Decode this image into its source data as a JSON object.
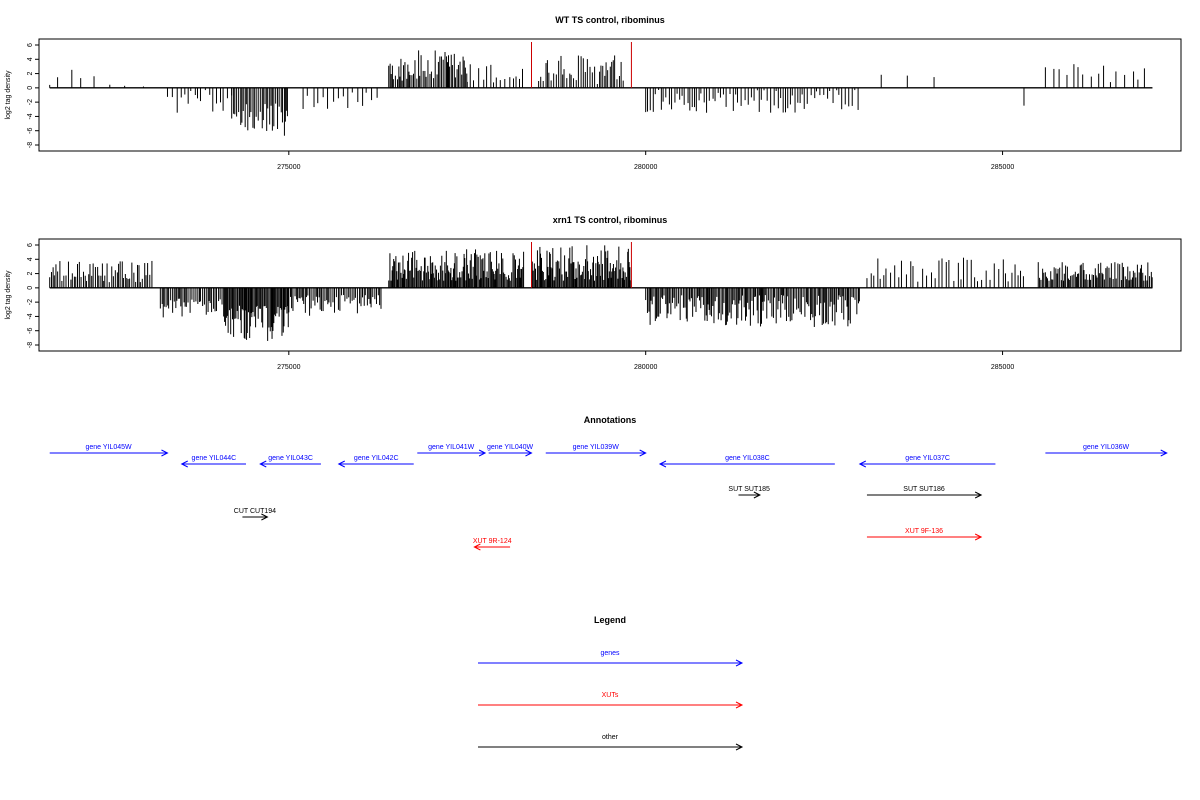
{
  "colors": {
    "genes": "#0000ff",
    "xuts": "#ff0000",
    "other": "#000000",
    "markers": "#cc0000"
  },
  "chart_data": [
    {
      "type": "bar",
      "title": "WT TS control, ribominus",
      "ylabel": "log2 tag density",
      "xlabel": "",
      "xlim": [
        271500,
        287500
      ],
      "ylim": [
        -8,
        6
      ],
      "xticks": [
        275000,
        280000,
        285000
      ],
      "yticks": [
        6,
        4,
        2,
        0,
        -2,
        -4,
        -6,
        -8
      ],
      "markers": [
        278400,
        279800
      ],
      "segments": [
        {
          "from": 271650,
          "to": 272600,
          "sign": 1,
          "min": 0.4,
          "max": 2.8,
          "step": 180
        },
        {
          "from": 272700,
          "to": 273200,
          "sign": 1,
          "min": 0.0,
          "max": 0.3,
          "step": 400
        },
        {
          "from": 273300,
          "to": 274200,
          "sign": -1,
          "min": 0.3,
          "max": 3.5,
          "step": 50
        },
        {
          "from": 274200,
          "to": 275000,
          "sign": -1,
          "min": 2.0,
          "max": 6.7,
          "step": 22
        },
        {
          "from": 275200,
          "to": 276300,
          "sign": -1,
          "min": 0.5,
          "max": 3.0,
          "step": 70
        },
        {
          "from": 276400,
          "to": 277500,
          "sign": 1,
          "min": 1.0,
          "max": 5.3,
          "step": 22
        },
        {
          "from": 277500,
          "to": 278300,
          "sign": 1,
          "min": 0.5,
          "max": 3.5,
          "step": 55
        },
        {
          "from": 278500,
          "to": 279700,
          "sign": 1,
          "min": 0.5,
          "max": 4.8,
          "step": 30
        },
        {
          "from": 280000,
          "to": 283000,
          "sign": -1,
          "min": 0.3,
          "max": 3.5,
          "step": 40
        },
        {
          "from": 283300,
          "to": 284200,
          "sign": 1,
          "min": 1.5,
          "max": 2.2,
          "step": 300
        },
        {
          "from": 285300,
          "to": 285400,
          "sign": -1,
          "min": 2.0,
          "max": 2.6,
          "step": 200
        },
        {
          "from": 285600,
          "to": 287100,
          "sign": 1,
          "min": 0.8,
          "max": 3.4,
          "step": 90
        }
      ]
    },
    {
      "type": "bar",
      "title": "xrn1 TS control, ribominus",
      "ylabel": "log2 tag density",
      "xlabel": "",
      "xlim": [
        271500,
        287500
      ],
      "ylim": [
        -8,
        6
      ],
      "xticks": [
        275000,
        280000,
        285000
      ],
      "yticks": [
        6,
        4,
        2,
        0,
        -2,
        -4,
        -6,
        -8
      ],
      "markers": [
        278400,
        279800
      ],
      "segments": [
        {
          "from": 271650,
          "to": 273100,
          "sign": 1,
          "min": 0.8,
          "max": 3.8,
          "step": 25
        },
        {
          "from": 273200,
          "to": 274100,
          "sign": -1,
          "min": 1.5,
          "max": 4.2,
          "step": 22
        },
        {
          "from": 274100,
          "to": 275000,
          "sign": -1,
          "min": 2.5,
          "max": 7.5,
          "step": 14
        },
        {
          "from": 275000,
          "to": 276300,
          "sign": -1,
          "min": 1.0,
          "max": 4.0,
          "step": 22
        },
        {
          "from": 276400,
          "to": 278300,
          "sign": 1,
          "min": 1.0,
          "max": 5.4,
          "step": 14
        },
        {
          "from": 278400,
          "to": 279800,
          "sign": 1,
          "min": 1.0,
          "max": 6.0,
          "step": 14
        },
        {
          "from": 280000,
          "to": 283000,
          "sign": -1,
          "min": 1.0,
          "max": 5.5,
          "step": 18
        },
        {
          "from": 283100,
          "to": 285300,
          "sign": 1,
          "min": 0.8,
          "max": 4.3,
          "step": 50
        },
        {
          "from": 285500,
          "to": 287100,
          "sign": 1,
          "min": 1.0,
          "max": 3.6,
          "step": 18
        }
      ]
    }
  ],
  "annotations": {
    "title": "Annotations",
    "xlim": [
      271500,
      287500
    ],
    "features": [
      {
        "label": "gene YIL045W",
        "type": "gene",
        "strand": "+",
        "start": 271650,
        "end": 273300,
        "row": 0
      },
      {
        "label": "gene YIL044C",
        "type": "gene",
        "strand": "-",
        "start": 273500,
        "end": 274400,
        "row": 1
      },
      {
        "label": "gene YIL043C",
        "type": "gene",
        "strand": "-",
        "start": 274600,
        "end": 275450,
        "row": 1
      },
      {
        "label": "gene YIL042C",
        "type": "gene",
        "strand": "-",
        "start": 275700,
        "end": 276750,
        "row": 1
      },
      {
        "label": "gene YIL041W",
        "type": "gene",
        "strand": "+",
        "start": 276800,
        "end": 277750,
        "row": 0
      },
      {
        "label": "gene YIL040W",
        "type": "gene",
        "strand": "+",
        "start": 277800,
        "end": 278400,
        "row": 0
      },
      {
        "label": "gene YIL039W",
        "type": "gene",
        "strand": "+",
        "start": 278600,
        "end": 280000,
        "row": 0
      },
      {
        "label": "gene YIL038C",
        "type": "gene",
        "strand": "-",
        "start": 280200,
        "end": 282650,
        "row": 1
      },
      {
        "label": "gene YIL037C",
        "type": "gene",
        "strand": "-",
        "start": 283000,
        "end": 284900,
        "row": 1
      },
      {
        "label": "gene YIL036W",
        "type": "gene",
        "strand": "+",
        "start": 285600,
        "end": 287300,
        "row": 0
      },
      {
        "label": "SUT SUT185",
        "type": "other",
        "strand": "+",
        "start": 281300,
        "end": 281600,
        "row": 2
      },
      {
        "label": "SUT SUT186",
        "type": "other",
        "strand": "+",
        "start": 283100,
        "end": 284700,
        "row": 2
      },
      {
        "label": "CUT CUT194",
        "type": "other",
        "strand": "+",
        "start": 274350,
        "end": 274700,
        "row": 3
      },
      {
        "label": "XUT 9F-136",
        "type": "xut",
        "strand": "+",
        "start": 283100,
        "end": 284700,
        "row": 4
      },
      {
        "label": "XUT 9R-124",
        "type": "xut",
        "strand": "-",
        "start": 277600,
        "end": 278100,
        "row": 5
      }
    ]
  },
  "legend": {
    "title": "Legend",
    "items": [
      {
        "label": "genes",
        "type": "gene"
      },
      {
        "label": "XUTs",
        "type": "xut"
      },
      {
        "label": "other",
        "type": "other"
      }
    ]
  }
}
